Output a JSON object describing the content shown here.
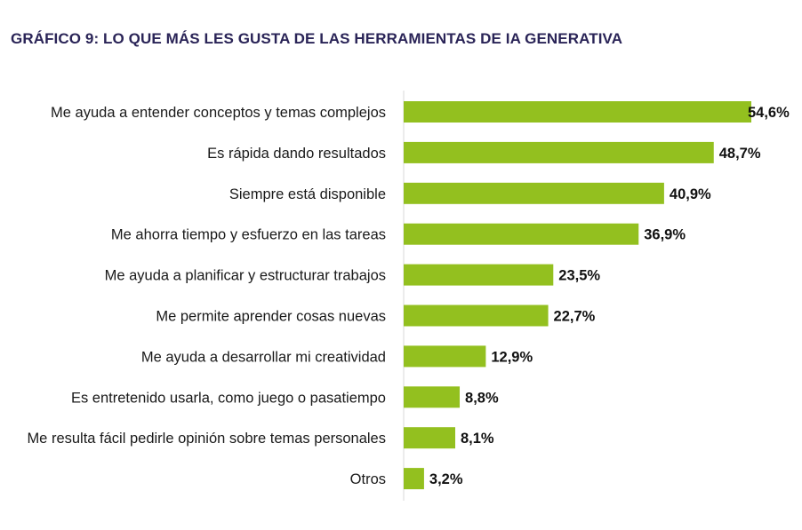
{
  "title": "GRÁFICO 9: LO QUE MÁS LES GUSTA DE LAS HERRAMIENTAS DE IA GENERATIVA",
  "colors": {
    "title": "#2a2457",
    "bar": "#93c01f",
    "axis": "#d9d9d9"
  },
  "chart_data": {
    "type": "bar",
    "orientation": "horizontal",
    "title": "GRÁFICO 9: LO QUE MÁS LES GUSTA DE LAS HERRAMIENTAS DE IA GENERATIVA",
    "categories": [
      "Me ayuda a entender conceptos y temas complejos",
      "Es rápida dando resultados",
      "Siempre está disponible",
      "Me ahorra tiempo y esfuerzo en las tareas",
      "Me ayuda a planificar y estructurar trabajos",
      "Me permite aprender cosas nuevas",
      "Me ayuda a desarrollar mi creatividad",
      "Es entretenido usarla, como juego o pasatiempo",
      "Me resulta fácil pedirle opinión sobre temas personales",
      "Otros"
    ],
    "values": [
      54.6,
      48.7,
      40.9,
      36.9,
      23.5,
      22.7,
      12.9,
      8.8,
      8.1,
      3.2
    ],
    "value_labels": [
      "54,6%",
      "48,7%",
      "40,9%",
      "36,9%",
      "23,5%",
      "22,7%",
      "12,9%",
      "8,8%",
      "8,1%",
      "3,2%"
    ],
    "xlim": [
      0,
      60
    ],
    "grid": false,
    "legend": "none"
  }
}
